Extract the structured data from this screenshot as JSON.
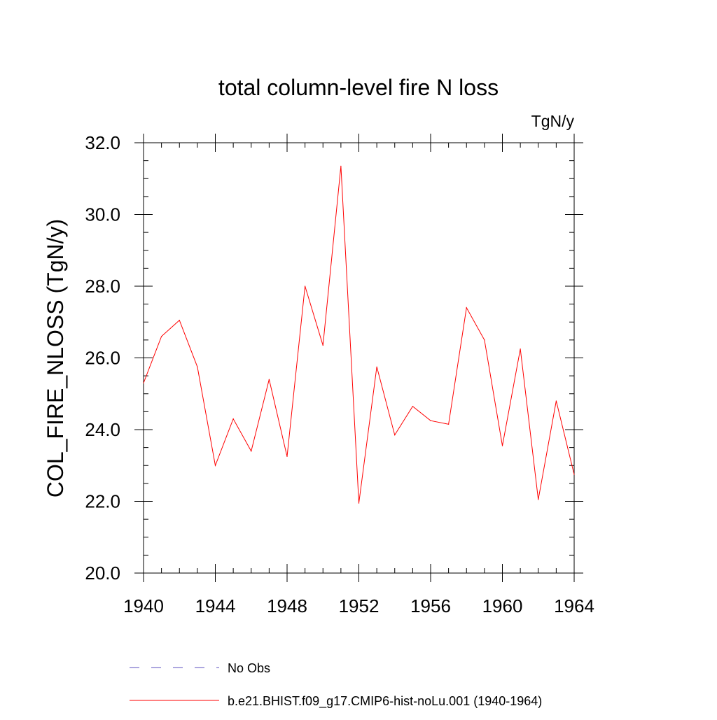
{
  "chart_data": {
    "type": "line",
    "title": "total column-level fire N loss",
    "units_label": "TgN/y",
    "ylabel": "COL_FIRE_NLOSS  (TgN/y)",
    "xlabel": "",
    "xlim": [
      1940,
      1964
    ],
    "ylim": [
      20.0,
      32.0
    ],
    "x_ticks": [
      1940,
      1944,
      1948,
      1952,
      1956,
      1960,
      1964
    ],
    "x_tick_labels": [
      "1940",
      "1944",
      "1948",
      "1952",
      "1956",
      "1960",
      "1964"
    ],
    "y_ticks": [
      20,
      22,
      24,
      26,
      28,
      30,
      32
    ],
    "y_tick_labels": [
      "20.0",
      "22.0",
      "24.0",
      "26.0",
      "28.0",
      "30.0",
      "32.0"
    ],
    "x_minor_step": 1,
    "y_minor_step": 0.5,
    "grid": false,
    "legend_position": "bottom",
    "legend": [
      {
        "label": "No Obs",
        "color": "#5b4fbf",
        "dash": "dashed"
      },
      {
        "label": "b.e21.BHIST.f09_g17.CMIP6-hist-noLu.001 (1940-1964)",
        "color": "#ff0000",
        "dash": "solid"
      }
    ],
    "series": [
      {
        "name": "b.e21.BHIST.f09_g17.CMIP6-hist-noLu.001 (1940-1964)",
        "color": "#ff0000",
        "x": [
          1940,
          1941,
          1942,
          1943,
          1944,
          1945,
          1946,
          1947,
          1948,
          1949,
          1950,
          1951,
          1952,
          1953,
          1954,
          1955,
          1956,
          1957,
          1958,
          1959,
          1960,
          1961,
          1962,
          1963,
          1964
        ],
        "values": [
          25.3,
          26.6,
          27.05,
          25.75,
          23.0,
          24.3,
          23.4,
          25.4,
          23.25,
          28.0,
          26.35,
          31.35,
          21.95,
          25.75,
          23.85,
          24.65,
          24.25,
          24.15,
          27.4,
          26.5,
          23.55,
          26.25,
          22.05,
          24.8,
          22.75
        ]
      }
    ]
  }
}
